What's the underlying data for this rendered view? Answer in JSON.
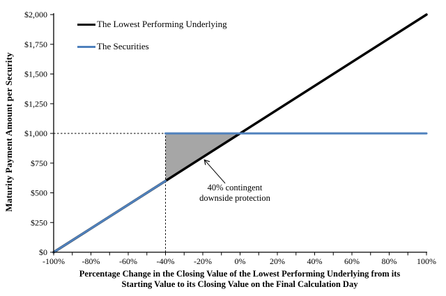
{
  "chart_data": {
    "type": "line",
    "title": "",
    "ylabel": "Maturity Payment Amount per Security",
    "xlabel_line1": "Percentage Change in the Closing Value of the Lowest Performing Underlying from its",
    "xlabel_line2": "Starting Value to its Closing Value on the Final Calculation Day",
    "xlim": [
      -100,
      100
    ],
    "ylim": [
      0,
      2000
    ],
    "grid": false,
    "legend_position": "top-left-inside",
    "x_axis": {
      "tick_step": 10,
      "label_step": 20,
      "labels": [
        "-100%",
        "-80%",
        "-60%",
        "-40%",
        "-20%",
        "0%",
        "20%",
        "40%",
        "60%",
        "80%",
        "100%"
      ]
    },
    "y_axis": {
      "tick_step": 250,
      "labels": [
        "$0",
        "$250",
        "$500",
        "$750",
        "$1,000",
        "$1,250",
        "$1,500",
        "$1,750",
        "$2,000"
      ]
    },
    "series": [
      {
        "name": "The Lowest Performing Underlying",
        "color": "#000000",
        "stroke_width": 3.5,
        "segments": [
          [
            [
              -100,
              0
            ],
            [
              100,
              2000
            ]
          ]
        ]
      },
      {
        "name": "The Securities",
        "color": "#4F81BD",
        "stroke_width": 3,
        "segments": [
          [
            [
              -100,
              0
            ],
            [
              -40,
              600
            ]
          ],
          [
            [
              -40,
              1000
            ],
            [
              100,
              1000
            ]
          ]
        ]
      }
    ],
    "shaded_region": {
      "color": "#A6A6A6",
      "vertices": [
        [
          -40,
          600
        ],
        [
          -40,
          1000
        ],
        [
          0,
          1000
        ]
      ]
    },
    "guide_lines": [
      {
        "x1": -100,
        "y1": 1000,
        "x2": -40,
        "y2": 1000
      },
      {
        "x1": -40,
        "y1": 0,
        "x2": -40,
        "y2": 1000
      }
    ],
    "annotation": {
      "line1": "40% contingent",
      "line2": "downside protection",
      "arrow_tail_data": [
        -8,
        580
      ],
      "arrow_tip_data": [
        -19,
        775
      ]
    }
  }
}
